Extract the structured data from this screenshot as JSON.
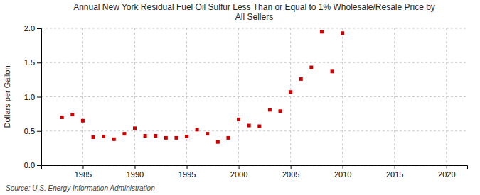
{
  "chart_data": {
    "type": "scatter",
    "title": "Annual New York Residual Fuel Oil Sulfur Less Than or Equal to 1% Wholesale/Resale Price by\nAll Sellers",
    "y_label": "Dollars per Gallon",
    "source": "Source: U.S. Energy Information Administration",
    "x": [
      1983,
      1984,
      1985,
      1986,
      1987,
      1988,
      1989,
      1990,
      1991,
      1992,
      1993,
      1994,
      1995,
      1996,
      1997,
      1998,
      1999,
      2000,
      2001,
      2002,
      2003,
      2004,
      2005,
      2006,
      2007,
      2008,
      2009,
      2010
    ],
    "values": [
      0.7,
      0.74,
      0.65,
      0.41,
      0.42,
      0.38,
      0.46,
      0.54,
      0.43,
      0.43,
      0.4,
      0.4,
      0.42,
      0.52,
      0.46,
      0.34,
      0.4,
      0.67,
      0.58,
      0.57,
      0.81,
      0.79,
      1.07,
      1.26,
      1.43,
      1.95,
      1.37,
      1.93
    ],
    "color": "#cc0000",
    "marker": "square",
    "xlim": [
      1981,
      2022
    ],
    "ylim": [
      0.0,
      2.0
    ],
    "xticks": [
      1985,
      1990,
      1995,
      2000,
      2005,
      2010,
      2015,
      2020
    ],
    "yticks": [
      {
        "value": 0.0,
        "label": "0.0"
      },
      {
        "value": 0.5,
        "label": "0.5"
      },
      {
        "value": 1.0,
        "label": "1.0"
      },
      {
        "value": 1.5,
        "label": "1.5"
      },
      {
        "value": 2.0,
        "label": "2.0"
      }
    ],
    "grid": true
  }
}
